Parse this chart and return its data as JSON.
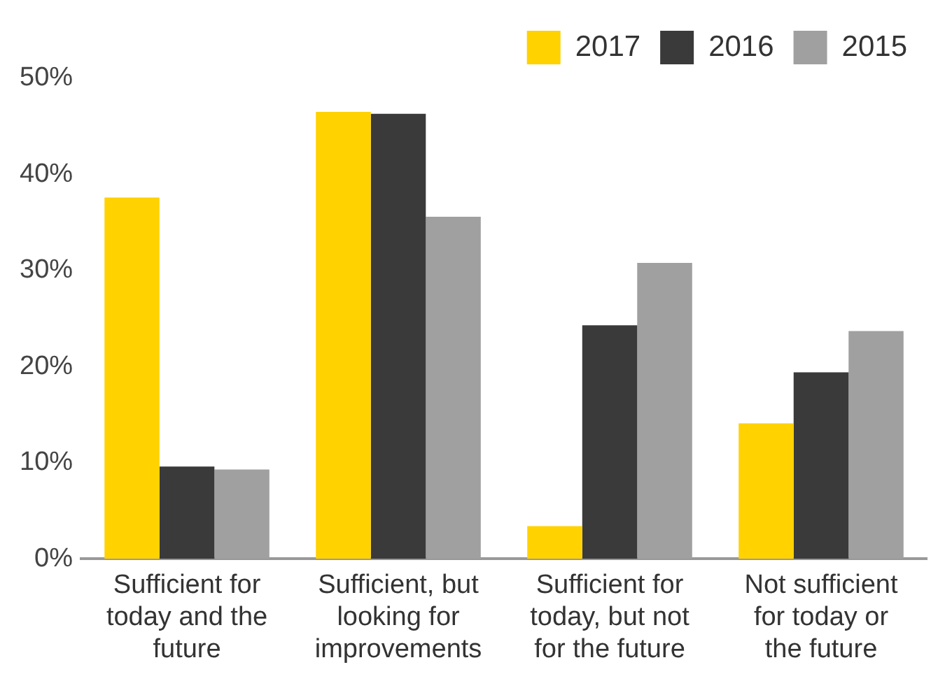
{
  "chart_data": {
    "type": "bar",
    "categories": [
      "Sufficient for today and the future",
      "Sufficient, but looking for improvements",
      "Sufficient for today, but not for the future",
      "Not sufficient for today or the future"
    ],
    "series": [
      {
        "name": "2017",
        "color": "#ffd200",
        "values": [
          37.6,
          46.5,
          3.4,
          14.1
        ]
      },
      {
        "name": "2016",
        "color": "#3a3a3a",
        "values": [
          9.6,
          46.3,
          24.3,
          19.4
        ]
      },
      {
        "name": "2015",
        "color": "#a0a0a0",
        "values": [
          9.3,
          35.6,
          30.8,
          23.7
        ]
      }
    ],
    "ylim": [
      0,
      50
    ],
    "yticks": [
      {
        "value": 0,
        "label": "0%"
      },
      {
        "value": 10,
        "label": "10%"
      },
      {
        "value": 20,
        "label": "20%"
      },
      {
        "value": 30,
        "label": "30%"
      },
      {
        "value": 40,
        "label": "40%"
      },
      {
        "value": 50,
        "label": "50%"
      }
    ],
    "grid": false,
    "legend": "top right"
  }
}
